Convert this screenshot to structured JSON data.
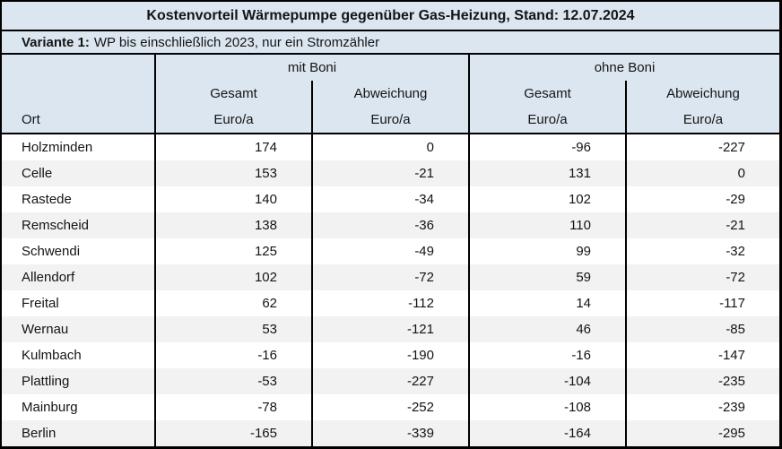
{
  "title": "Kostenvorteil Wärmepumpe gegenüber Gas-Heizung, Stand: 12.07.2024",
  "variant": {
    "label": "Variante 1:",
    "text": "WP bis einschließlich 2023, nur ein Stromzähler"
  },
  "columns": {
    "ort": "Ort",
    "group_mit": "mit Boni",
    "group_ohne": "ohne Boni",
    "gesamt": "Gesamt",
    "abweichung": "Abweichung",
    "unit": "Euro/a"
  },
  "colors": {
    "header_bg": "#dce6f1",
    "band_bg": "#f2f2f2",
    "row_bg": "#ffffff",
    "border": "#000000",
    "text": "#141414"
  },
  "chart_data": {
    "type": "table",
    "title": "Kostenvorteil Wärmepumpe gegenüber Gas-Heizung, Stand: 12.07.2024",
    "subtitle": "Variante 1: WP bis einschließlich 2023, nur ein Stromzähler",
    "column_groups": [
      "mit Boni",
      "ohne Boni"
    ],
    "columns": [
      "Ort",
      "mit Boni Gesamt Euro/a",
      "mit Boni Abweichung Euro/a",
      "ohne Boni Gesamt Euro/a",
      "ohne Boni Abweichung Euro/a"
    ],
    "rows": [
      [
        "Holzminden",
        174,
        0,
        -96,
        -227
      ],
      [
        "Celle",
        153,
        -21,
        131,
        0
      ],
      [
        "Rastede",
        140,
        -34,
        102,
        -29
      ],
      [
        "Remscheid",
        138,
        -36,
        110,
        -21
      ],
      [
        "Schwendi",
        125,
        -49,
        99,
        -32
      ],
      [
        "Allendorf",
        102,
        -72,
        59,
        -72
      ],
      [
        "Freital",
        62,
        -112,
        14,
        -117
      ],
      [
        "Wernau",
        53,
        -121,
        46,
        -85
      ],
      [
        "Kulmbach",
        -16,
        -190,
        -16,
        -147
      ],
      [
        "Plattling",
        -53,
        -227,
        -104,
        -235
      ],
      [
        "Mainburg",
        -78,
        -252,
        -108,
        -239
      ],
      [
        "Berlin",
        -165,
        -339,
        -164,
        -295
      ]
    ]
  }
}
